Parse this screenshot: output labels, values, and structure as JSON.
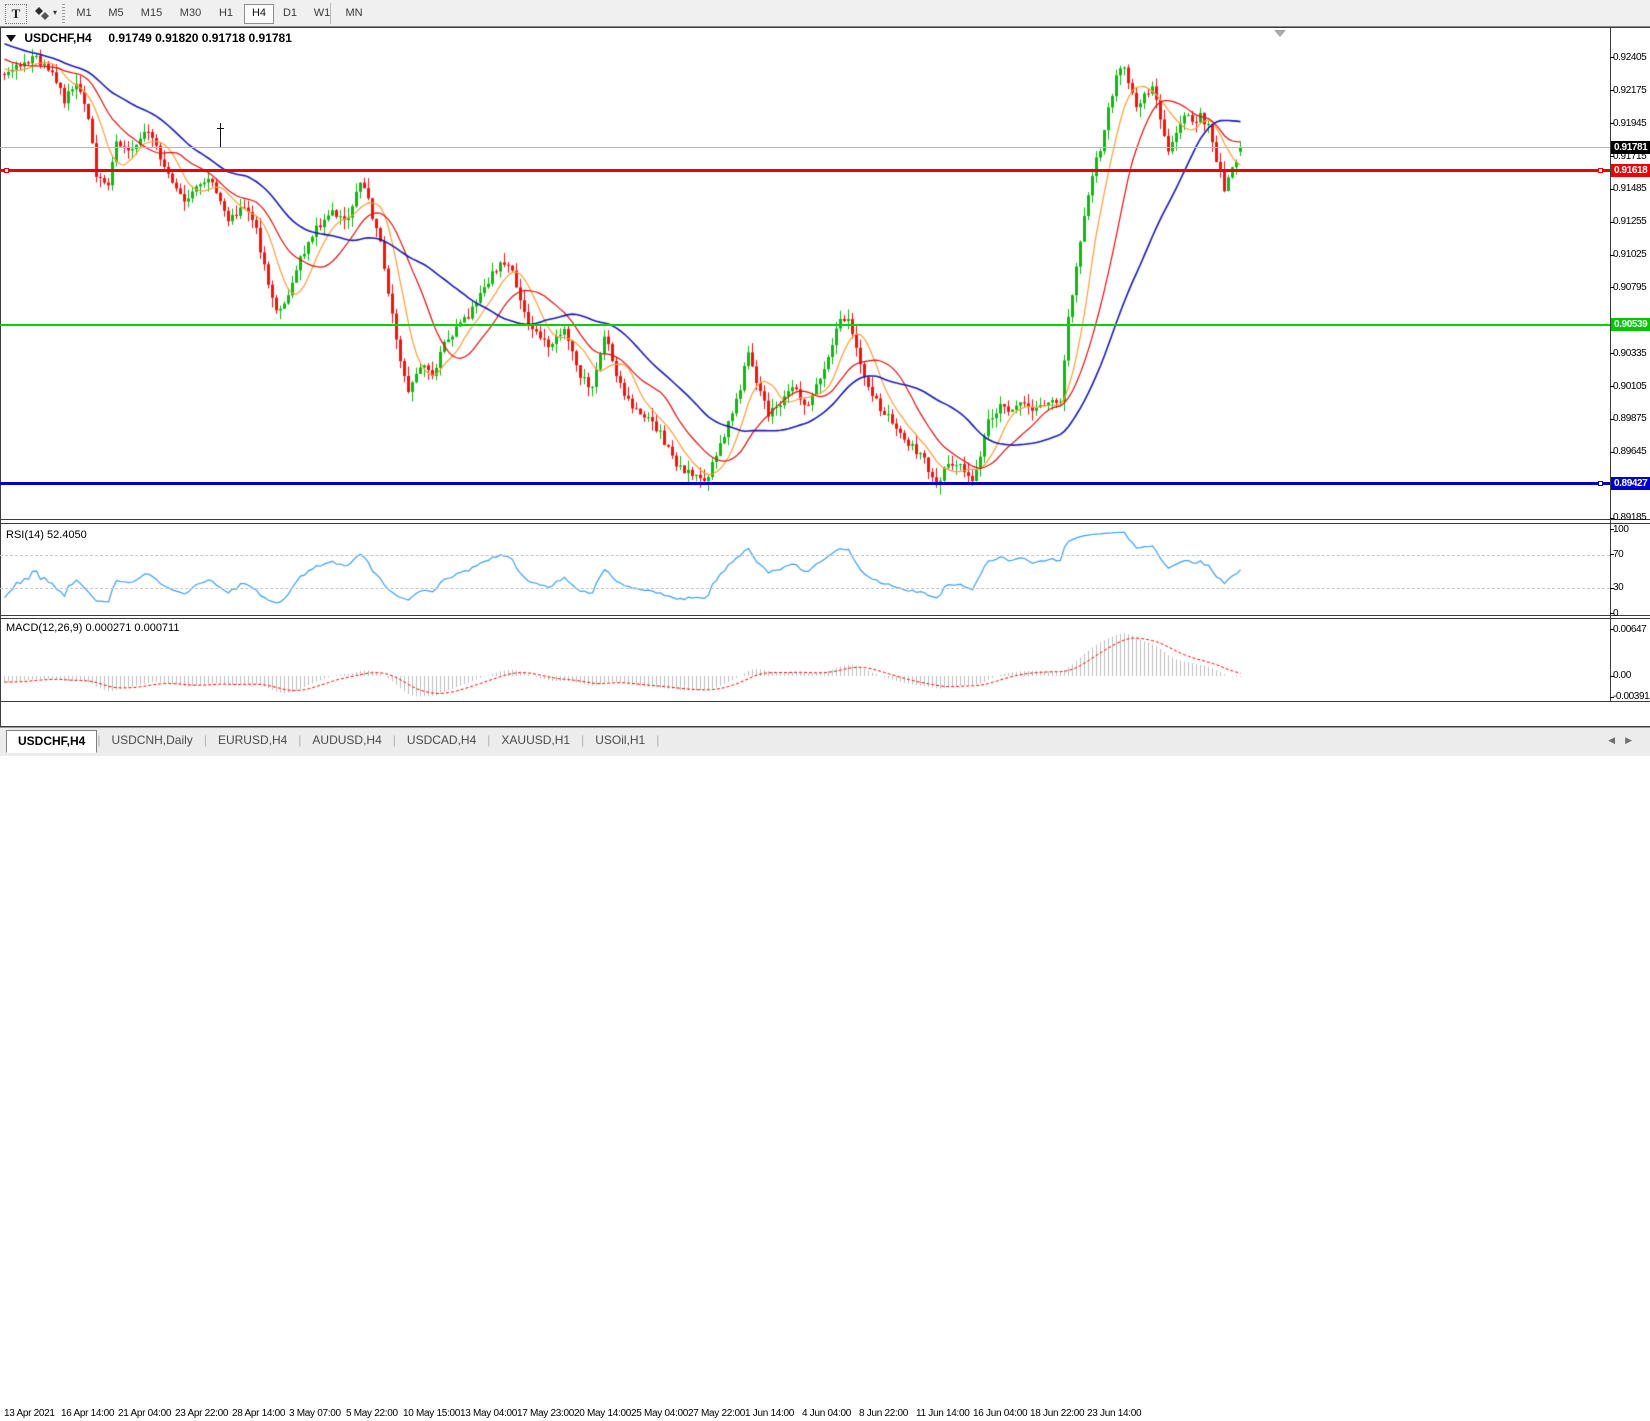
{
  "toolbar": {
    "text_tool": "T",
    "timeframes": [
      "M1",
      "M5",
      "M15",
      "M30",
      "H1",
      "H4",
      "D1",
      "W1",
      "MN"
    ],
    "active_timeframe": "H4"
  },
  "chart_title": {
    "symbol_line": "USDCHF,H4",
    "ohlc": "0.91749 0.91820 0.91718 0.91781"
  },
  "panels": {
    "rsi": {
      "label": "RSI(14) 52.4050",
      "axis_labels": [
        "100",
        "70",
        "30",
        "0"
      ],
      "level_lines": [
        70,
        30
      ]
    },
    "macd": {
      "label": "MACD(12,26,9) 0.000271 0.000711",
      "axis_labels": [
        "0.00647",
        "0.00",
        "-0.00391"
      ]
    }
  },
  "price_scale": {
    "labels": [
      "0.92405",
      "0.92175",
      "0.91945",
      "0.91715",
      "0.91485",
      "0.91255",
      "0.91025",
      "0.90795",
      "0.90335",
      "0.90105",
      "0.89875",
      "0.89645",
      "0.89185"
    ],
    "badges": [
      {
        "text": "0.91781",
        "price": 0.91781,
        "bg": "#000000",
        "fg": "#ffffff",
        "kind": "current-price"
      },
      {
        "text": "0.91618",
        "price": 0.91618,
        "bg": "#ee0000",
        "fg": "#ffffff",
        "kind": "red-hline"
      },
      {
        "text": "0.90539",
        "price": 0.90539,
        "bg": "#00c800",
        "fg": "#ffffff",
        "kind": "green-hline"
      },
      {
        "text": "0.89427",
        "price": 0.89427,
        "bg": "#0000cc",
        "fg": "#ffffff",
        "kind": "blue-hline"
      }
    ]
  },
  "tab_bar": {
    "tabs": [
      "USDCHF,H4",
      "USDCNH,Daily",
      "EURUSD,H4",
      "AUDUSD,H4",
      "USDCAD,H4",
      "XAUUSD,H1",
      "USOil,H1"
    ],
    "active_tab": "USDCHF,H4"
  },
  "chart_data": {
    "type": "candlestick",
    "symbol": "USDCHF",
    "timeframe": "H4",
    "title": "USDCHF,H4 0.91749 0.91820 0.91718 0.91781",
    "visible_bars": 310,
    "last_bar_ohlc": {
      "open": 0.91749,
      "high": 0.9182,
      "low": 0.91718,
      "close": 0.91781
    },
    "y_axis": {
      "top": 0.92615,
      "bottom": 0.89185,
      "tick_step": 0.0023
    },
    "x_axis_labels": [
      "13 Apr 2021",
      "16 Apr 14:00",
      "21 Apr 04:00",
      "23 Apr 22:00",
      "28 Apr 14:00",
      "3 May 07:00",
      "5 May 22:00",
      "10 May 15:00",
      "13 May 04:00",
      "17 May 23:00",
      "20 May 14:00",
      "25 May 04:00",
      "27 May 22:00",
      "1 Jun 14:00",
      "4 Jun 04:00",
      "8 Jun 22:00",
      "11 Jun 14:00",
      "16 Jun 04:00",
      "18 Jun 22:00",
      "23 Jun 14:00"
    ],
    "prehistory_anchors": [
      [
        -80,
        0.9305
      ],
      [
        -45,
        0.9285
      ],
      [
        -15,
        0.925
      ],
      [
        -1,
        0.923
      ]
    ],
    "price_path_anchors": [
      [
        0,
        0.9227
      ],
      [
        4,
        0.9237
      ],
      [
        8,
        0.924
      ],
      [
        12,
        0.9231
      ],
      [
        15,
        0.921
      ],
      [
        18,
        0.9224
      ],
      [
        21,
        0.92
      ],
      [
        23,
        0.9158
      ],
      [
        26,
        0.915
      ],
      [
        28,
        0.918
      ],
      [
        32,
        0.9178
      ],
      [
        36,
        0.919
      ],
      [
        40,
        0.9165
      ],
      [
        45,
        0.914
      ],
      [
        48,
        0.915
      ],
      [
        52,
        0.9155
      ],
      [
        56,
        0.9128
      ],
      [
        60,
        0.9135
      ],
      [
        63,
        0.912
      ],
      [
        66,
        0.908
      ],
      [
        68,
        0.9062
      ],
      [
        71,
        0.9075
      ],
      [
        74,
        0.91
      ],
      [
        78,
        0.9122
      ],
      [
        82,
        0.9133
      ],
      [
        86,
        0.9128
      ],
      [
        89,
        0.9155
      ],
      [
        91,
        0.914
      ],
      [
        94,
        0.911
      ],
      [
        96,
        0.9075
      ],
      [
        99,
        0.903
      ],
      [
        101,
        0.9008
      ],
      [
        104,
        0.9025
      ],
      [
        107,
        0.9018
      ],
      [
        110,
        0.904
      ],
      [
        113,
        0.9052
      ],
      [
        116,
        0.906
      ],
      [
        120,
        0.908
      ],
      [
        124,
        0.9098
      ],
      [
        127,
        0.9092
      ],
      [
        130,
        0.906
      ],
      [
        134,
        0.9042
      ],
      [
        137,
        0.904
      ],
      [
        140,
        0.9052
      ],
      [
        144,
        0.9018
      ],
      [
        147,
        0.9008
      ],
      [
        150,
        0.9048
      ],
      [
        153,
        0.902
      ],
      [
        156,
        0.9
      ],
      [
        160,
        0.899
      ],
      [
        164,
        0.8978
      ],
      [
        168,
        0.8955
      ],
      [
        172,
        0.8948
      ],
      [
        175,
        0.8942
      ],
      [
        178,
        0.8962
      ],
      [
        181,
        0.8985
      ],
      [
        184,
        0.901
      ],
      [
        186,
        0.9035
      ],
      [
        188,
        0.9015
      ],
      [
        191,
        0.8992
      ],
      [
        194,
        0.9
      ],
      [
        197,
        0.9012
      ],
      [
        200,
        0.8995
      ],
      [
        203,
        0.901
      ],
      [
        206,
        0.9032
      ],
      [
        209,
        0.906
      ],
      [
        211,
        0.9058
      ],
      [
        213,
        0.9035
      ],
      [
        216,
        0.9012
      ],
      [
        219,
        0.8995
      ],
      [
        223,
        0.8982
      ],
      [
        227,
        0.8968
      ],
      [
        230,
        0.896
      ],
      [
        233,
        0.894
      ],
      [
        236,
        0.8958
      ],
      [
        239,
        0.8955
      ],
      [
        242,
        0.8944
      ],
      [
        244,
        0.896
      ],
      [
        246,
        0.8988
      ],
      [
        249,
        0.8996
      ],
      [
        252,
        0.8992
      ],
      [
        255,
        0.9
      ],
      [
        258,
        0.8994
      ],
      [
        261,
        0.8999
      ],
      [
        264,
        0.9002
      ],
      [
        266,
        0.9058
      ],
      [
        268,
        0.9092
      ],
      [
        270,
        0.913
      ],
      [
        272,
        0.916
      ],
      [
        274,
        0.9178
      ],
      [
        276,
        0.9205
      ],
      [
        278,
        0.9228
      ],
      [
        280,
        0.9235
      ],
      [
        281,
        0.9225
      ],
      [
        283,
        0.9205
      ],
      [
        285,
        0.9215
      ],
      [
        287,
        0.922
      ],
      [
        289,
        0.92
      ],
      [
        291,
        0.9175
      ],
      [
        293,
        0.9188
      ],
      [
        295,
        0.9202
      ],
      [
        297,
        0.9196
      ],
      [
        299,
        0.92
      ],
      [
        301,
        0.9192
      ],
      [
        303,
        0.917
      ],
      [
        305,
        0.9148
      ],
      [
        307,
        0.9162
      ],
      [
        309,
        0.9178
      ]
    ],
    "moving_averages": [
      {
        "name": "ma-fast",
        "period": 8,
        "color": "#ff9c3c"
      },
      {
        "name": "ma-mid",
        "period": 17,
        "color": "#e01010"
      },
      {
        "name": "ma-slow",
        "period": 34,
        "color": "#1a1aae"
      }
    ],
    "rsi": {
      "period": 14,
      "current": 52.405,
      "color": "#3d9ef2",
      "levels": [
        70,
        30
      ],
      "range": [
        0,
        100
      ]
    },
    "macd": {
      "fast": 12,
      "slow": 26,
      "signal": 9,
      "current_macd": 0.000271,
      "current_signal": 0.000711,
      "hist_color": "#bdbdbd",
      "signal_color": "#ff0000",
      "axis_max": 0.00647,
      "axis_min": -0.00391
    },
    "horizontal_lines": [
      {
        "price": 0.91781,
        "color": "#b8b8b8",
        "width": 1,
        "kind": "current-price-line",
        "handles": ""
      },
      {
        "price": 0.91618,
        "color": "#ee0000",
        "width": 3,
        "kind": "horizontal-line-object",
        "handles": "LR"
      },
      {
        "price": 0.90539,
        "color": "#00d500",
        "width": 2,
        "kind": "horizontal-line-object",
        "handles": ""
      },
      {
        "price": 0.89427,
        "color": "#0000cc",
        "width": 3,
        "kind": "horizontal-line-object",
        "handles": "R"
      }
    ],
    "candle_colors": {
      "up": "#14b514",
      "down": "#ee1414"
    },
    "markers": [
      {
        "kind": "chart-shift-marker",
        "bar": 319
      },
      {
        "kind": "object-marker",
        "bar": 54,
        "price_top": 0.9195,
        "price_bottom": 0.9178
      }
    ]
  }
}
